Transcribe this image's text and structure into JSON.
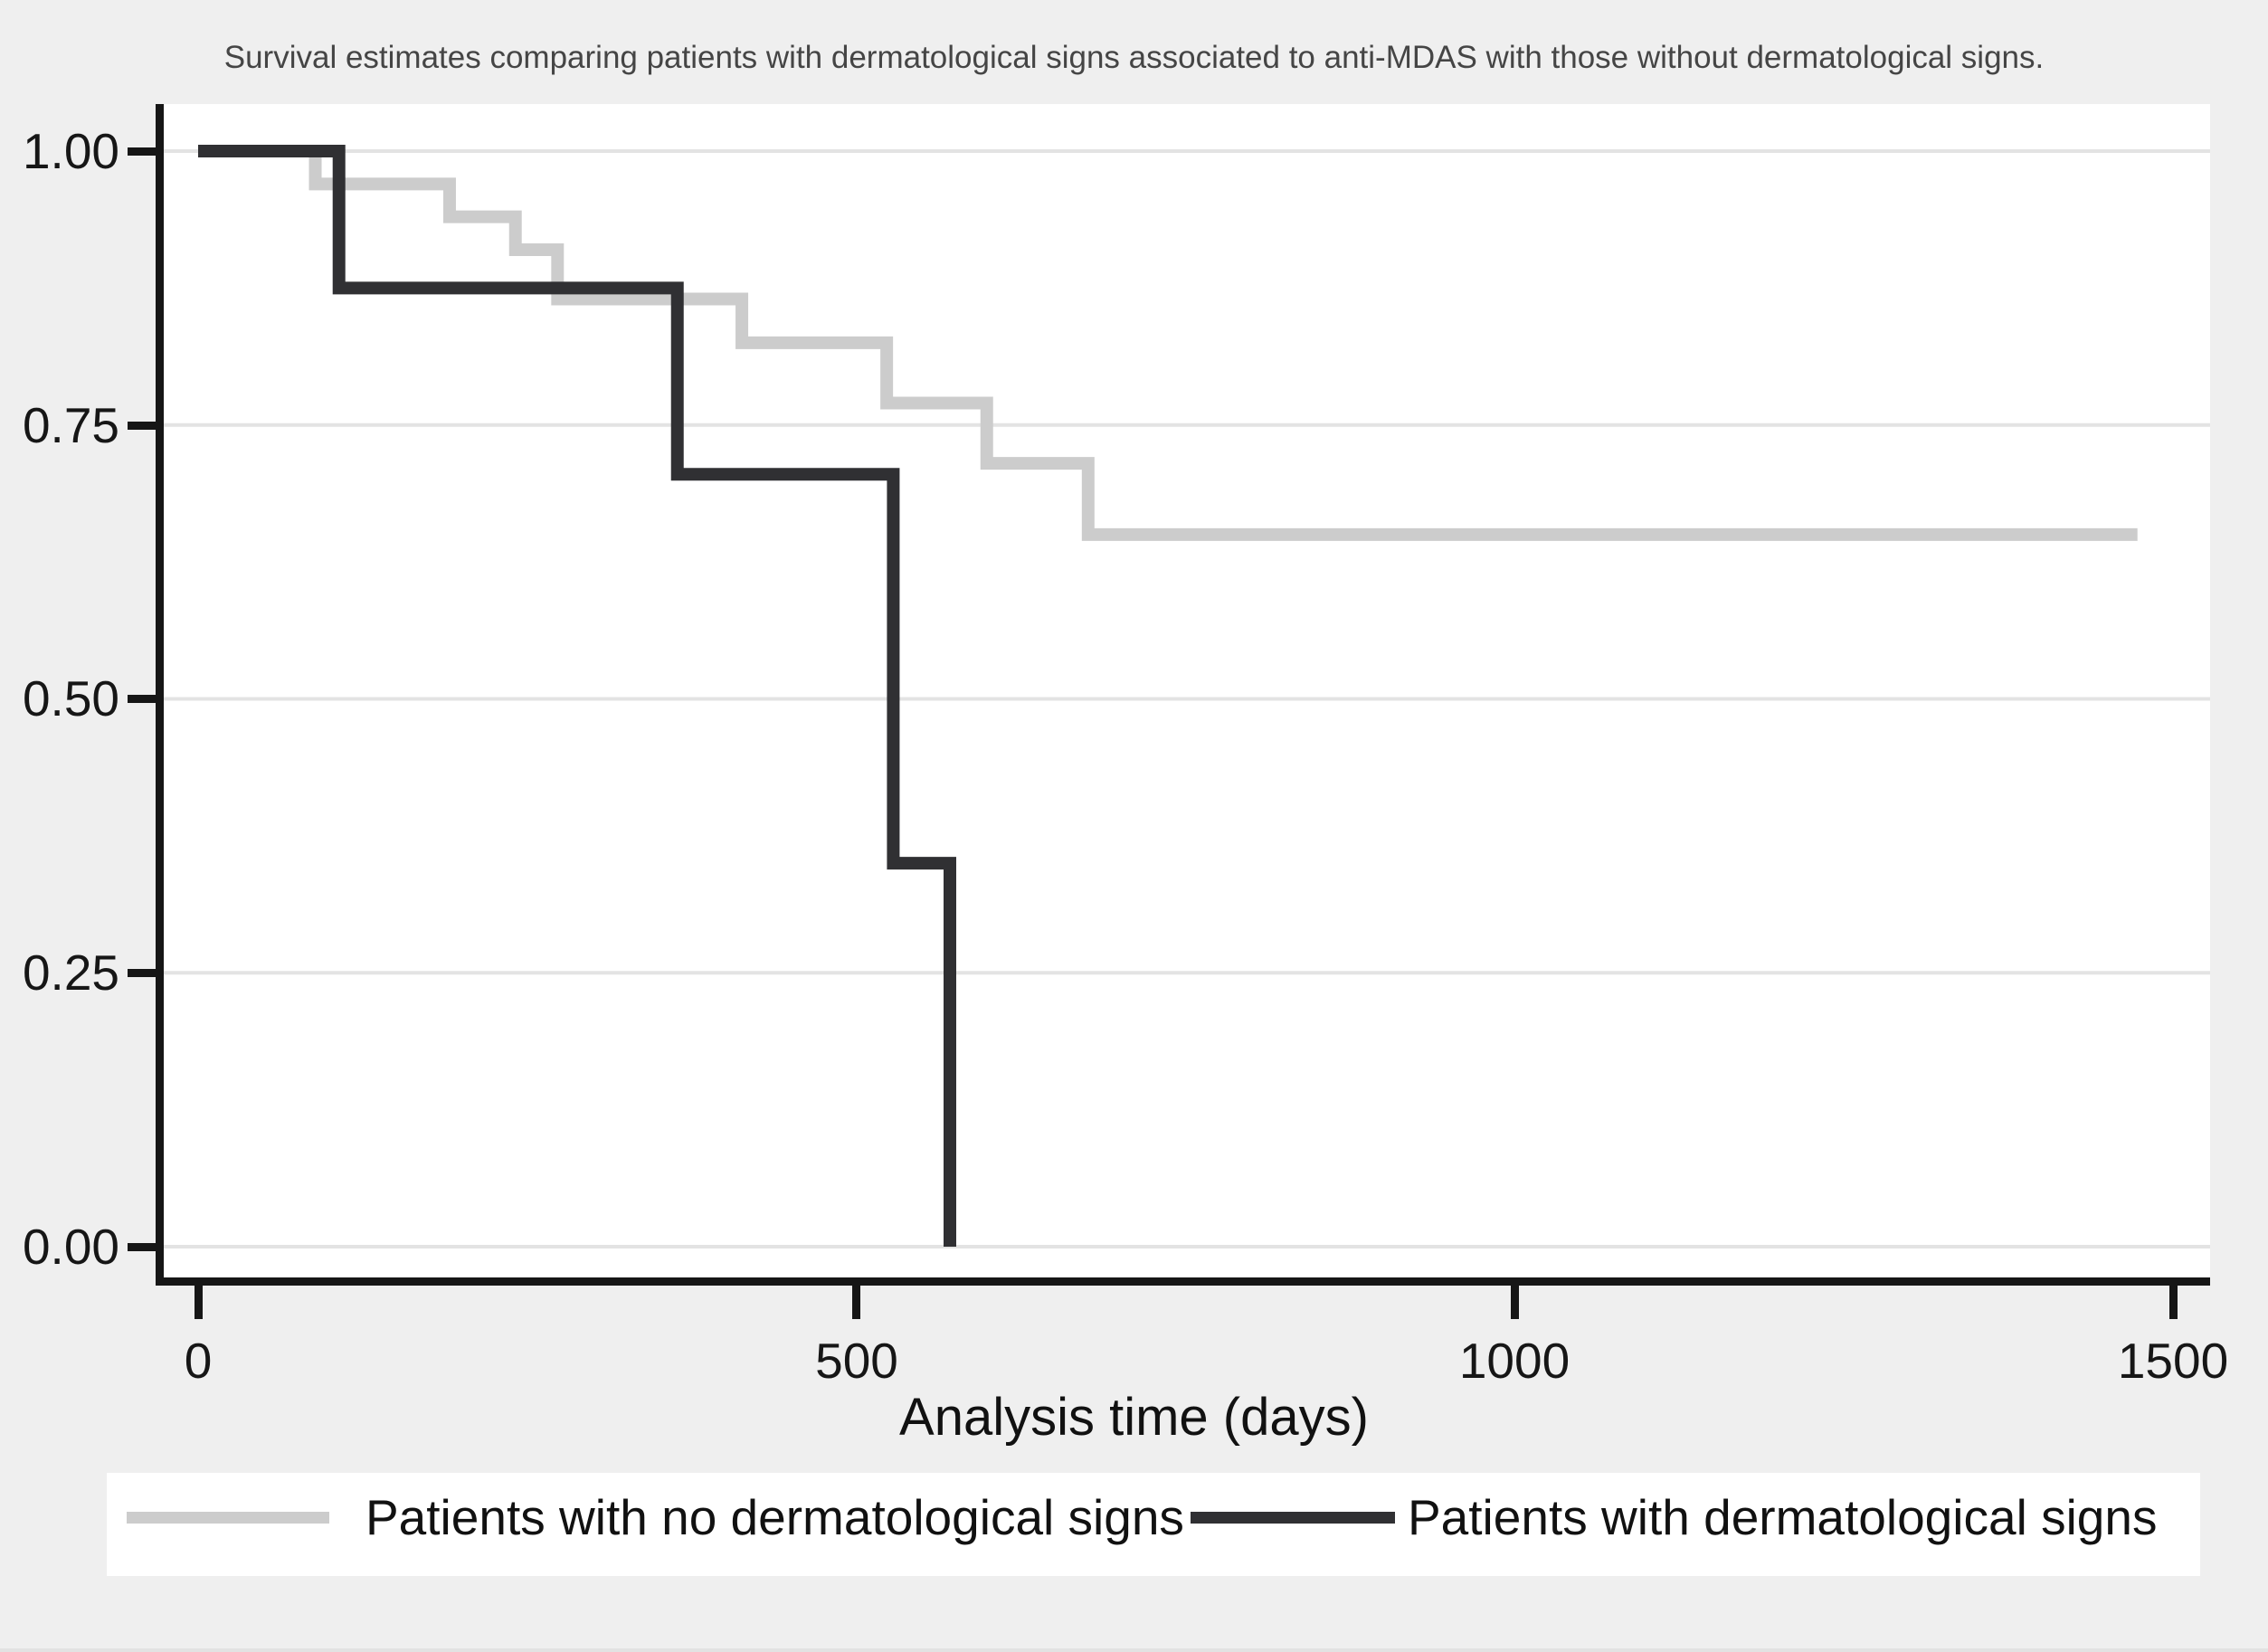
{
  "title": "Survival estimates comparing patients with dermatological signs associated to anti-MDAS with those without dermatological signs.",
  "axes": {
    "x": {
      "label": "Analysis time (days)",
      "ticks": [
        "0",
        "500",
        "1000",
        "1500"
      ]
    },
    "y": {
      "ticks": [
        "1.00",
        "0.75",
        "0.50",
        "0.25",
        "0.00"
      ]
    }
  },
  "legend": {
    "items": [
      {
        "id": "no-dermatological-signs",
        "label": "Patients with no dermatological signs",
        "color": "#cccccc"
      },
      {
        "id": "dermatological-signs",
        "label": "Patients with dermatological signs",
        "color": "#303033"
      }
    ]
  },
  "colors": {
    "page_background": "#efefef",
    "plot_background": "#ffffff",
    "axis": "#161616",
    "gridline": "#e3e3e3",
    "series_no_derm": "#cccccc",
    "series_derm": "#303033"
  },
  "chart_data": {
    "type": "line",
    "subtype": "kaplan-meier-step",
    "title": "Survival estimates comparing patients with dermatological signs associated to anti-MDAS with those without dermatological signs.",
    "xlabel": "Analysis time (days)",
    "ylabel": "",
    "xlim": [
      0,
      1529
    ],
    "ylim": [
      0.0,
      1.0
    ],
    "x_ticks": [
      0,
      500,
      1000,
      1500
    ],
    "y_ticks": [
      1.0,
      0.75,
      0.5,
      0.25,
      0.0
    ],
    "grid": "horizontal",
    "legend_position": "bottom",
    "series": [
      {
        "id": "no-dermatological-signs",
        "name": "Patients with no dermatological signs",
        "color": "#cccccc",
        "points": [
          [
            0,
            1.0
          ],
          [
            89,
            1.0
          ],
          [
            89,
            0.97
          ],
          [
            191,
            0.97
          ],
          [
            191,
            0.94
          ],
          [
            241,
            0.94
          ],
          [
            241,
            0.91
          ],
          [
            273,
            0.91
          ],
          [
            273,
            0.865
          ],
          [
            413,
            0.865
          ],
          [
            413,
            0.825
          ],
          [
            523,
            0.825
          ],
          [
            523,
            0.77
          ],
          [
            599,
            0.77
          ],
          [
            599,
            0.715
          ],
          [
            676,
            0.715
          ],
          [
            676,
            0.65
          ],
          [
            1473,
            0.65
          ]
        ]
      },
      {
        "id": "dermatological-signs",
        "name": "Patients with dermatological signs",
        "color": "#303033",
        "points": [
          [
            0,
            1.0
          ],
          [
            107,
            1.0
          ],
          [
            107,
            0.875
          ],
          [
            364,
            0.875
          ],
          [
            364,
            0.705
          ],
          [
            528,
            0.705
          ],
          [
            528,
            0.35
          ],
          [
            571,
            0.35
          ],
          [
            571,
            0.0
          ]
        ]
      }
    ]
  }
}
